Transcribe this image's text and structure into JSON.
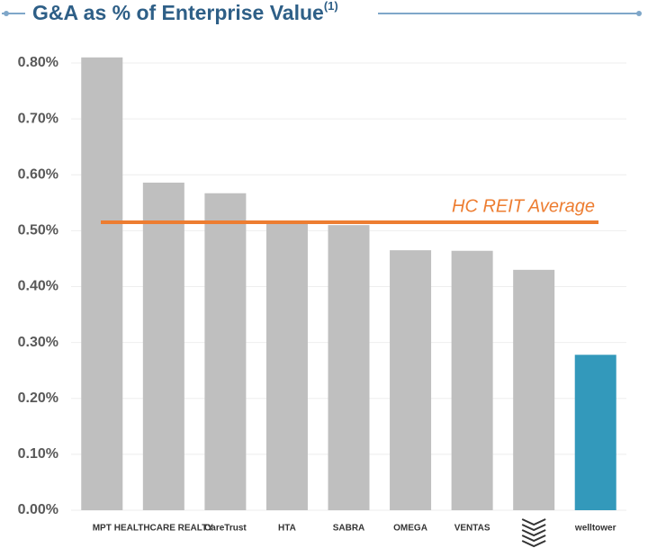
{
  "chart_data": {
    "type": "bar",
    "title": "G&A as % of Enterprise Value",
    "title_superscript": "(1)",
    "categories": [
      "MPT",
      "HEALTHCARE REALTY",
      "CareTrust",
      "HTA",
      "SABRA",
      "OMEGA",
      "VENTAS",
      null,
      "welltower"
    ],
    "values": [
      0.81,
      0.586,
      0.567,
      0.517,
      0.51,
      0.465,
      0.464,
      0.43,
      0.278
    ],
    "colors": [
      "#bfbfbf",
      "#bfbfbf",
      "#bfbfbf",
      "#bfbfbf",
      "#bfbfbf",
      "#bfbfbf",
      "#bfbfbf",
      "#bfbfbf",
      "#3399bb"
    ],
    "ylim": [
      0,
      0.8
    ],
    "yticks": [
      {
        "value": 0,
        "label": "0.00%"
      },
      {
        "value": 0.1,
        "label": "0.10%"
      },
      {
        "value": 0.2,
        "label": "0.20%"
      },
      {
        "value": 0.3,
        "label": "0.30%"
      },
      {
        "value": 0.4,
        "label": "0.40%"
      },
      {
        "value": 0.5,
        "label": "0.50%"
      },
      {
        "value": 0.6,
        "label": "0.60%"
      },
      {
        "value": 0.7,
        "label": "0.70%"
      },
      {
        "value": 0.8,
        "label": "0.80%"
      }
    ],
    "grid": true,
    "reference_line": {
      "label": "HC REIT Average",
      "value": 0.515,
      "color": "#ed7d31"
    }
  }
}
